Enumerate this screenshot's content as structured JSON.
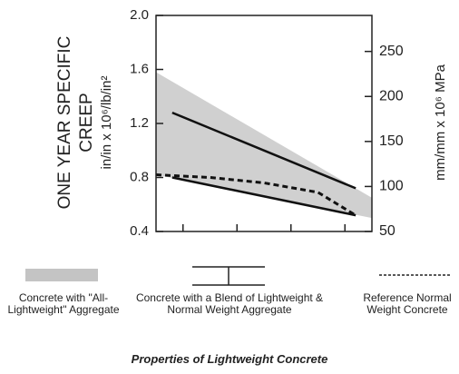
{
  "chart_data": {
    "type": "line",
    "ylabel": [
      "ONE YEAR SPECIFIC",
      "CREEP"
    ],
    "ylabel_units": "in/in x 10⁶/lb/in²",
    "y2label": "mm/mm  x 10⁶ MPa",
    "caption": "Properties of Lightweight Concrete",
    "xlim": [
      0,
      4
    ],
    "xticks": [
      0.5,
      1.5,
      2.5,
      3.5
    ],
    "ylim": [
      0.4,
      2.0
    ],
    "yticks": [
      0.4,
      0.8,
      1.2,
      1.6,
      {
        "value": 2.0,
        "label": "2.0"
      }
    ],
    "y2lim": [
      50,
      290
    ],
    "y2ticks": [
      50,
      100,
      150,
      200,
      250
    ],
    "series": [
      {
        "name": "Concrete with \"All-Lightweight\" Aggregate",
        "style": "band",
        "color": "#c4c4c4",
        "x": [
          0,
          4
        ],
        "values": [
          1.58,
          0.65
        ],
        "lower": [
          0.82,
          0.5
        ]
      },
      {
        "name": "Concrete with a Blend of Lightweight & Normal Weight Aggregate",
        "style": "range",
        "color": "#111111",
        "x": [
          0.3,
          3.7
        ],
        "values": [
          1.28,
          0.72
        ],
        "lower": [
          0.8,
          0.52
        ]
      },
      {
        "name": "Reference Normal Weight Concrete",
        "style": "dashed",
        "color": "#111111",
        "x": [
          0,
          1,
          2,
          3,
          3.7
        ],
        "values": [
          0.82,
          0.8,
          0.76,
          0.69,
          0.52
        ]
      }
    ]
  }
}
